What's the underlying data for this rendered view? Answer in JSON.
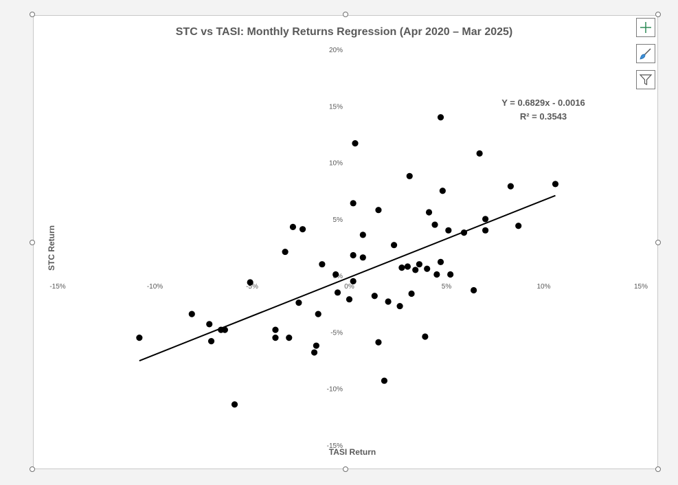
{
  "chart_data": {
    "type": "scatter",
    "title": "STC vs TASI: Monthly Returns Regression (Apr 2020 – Mar 2025)",
    "xlabel": "TASI Return",
    "ylabel": "STC Return",
    "xlim": [
      -0.15,
      0.15
    ],
    "ylim": [
      -0.15,
      0.2
    ],
    "x_ticks": [
      -0.15,
      -0.1,
      -0.05,
      0,
      0.05,
      0.1,
      0.15
    ],
    "x_tick_labels": [
      "-15%",
      "-10%",
      "-5%",
      "0%",
      "5%",
      "10%",
      "15%"
    ],
    "y_ticks": [
      0.2,
      0.15,
      0.1,
      0.05,
      0,
      -0.05,
      -0.1,
      -0.15
    ],
    "y_tick_labels": [
      "20%",
      "15%",
      "10%",
      "5%",
      "0%",
      "-5%",
      "-10%",
      "-15%"
    ],
    "grid": false,
    "legend": "none",
    "marker_color": "#000000",
    "trendline": {
      "type": "linear",
      "slope": 0.6829,
      "intercept": -0.0016,
      "x_range": [
        -0.108,
        0.106
      ],
      "color": "#000000",
      "equation_label": "Y = 0.6829x - 0.0016",
      "r2_label": "R² = 0.3543"
    },
    "points": [
      [
        0.047,
        0.14
      ],
      [
        0.003,
        0.117
      ],
      [
        0.067,
        0.108
      ],
      [
        0.031,
        0.088
      ],
      [
        0.048,
        0.075
      ],
      [
        0.106,
        0.081
      ],
      [
        0.083,
        0.079
      ],
      [
        0.002,
        0.064
      ],
      [
        0.015,
        0.058
      ],
      [
        0.041,
        0.056
      ],
      [
        0.07,
        0.05
      ],
      [
        0.044,
        0.045
      ],
      [
        0.087,
        0.044
      ],
      [
        -0.029,
        0.043
      ],
      [
        -0.024,
        0.041
      ],
      [
        0.051,
        0.04
      ],
      [
        0.07,
        0.04
      ],
      [
        0.059,
        0.038
      ],
      [
        0.007,
        0.036
      ],
      [
        0.023,
        0.027
      ],
      [
        -0.033,
        0.021
      ],
      [
        0.002,
        0.018
      ],
      [
        0.007,
        0.016
      ],
      [
        0.047,
        0.012
      ],
      [
        -0.014,
        0.01
      ],
      [
        0.036,
        0.01
      ],
      [
        0.03,
        0.008
      ],
      [
        0.027,
        0.007
      ],
      [
        0.04,
        0.006
      ],
      [
        0.034,
        0.005
      ],
      [
        0.045,
        0.001
      ],
      [
        0.052,
        0.001
      ],
      [
        -0.007,
        0.001
      ],
      [
        0.002,
        -0.005
      ],
      [
        -0.051,
        -0.006
      ],
      [
        0.064,
        -0.013
      ],
      [
        -0.006,
        -0.015
      ],
      [
        0.032,
        -0.016
      ],
      [
        0.013,
        -0.018
      ],
      [
        0.0,
        -0.021
      ],
      [
        -0.026,
        -0.024
      ],
      [
        0.02,
        -0.023
      ],
      [
        0.026,
        -0.027
      ],
      [
        -0.081,
        -0.034
      ],
      [
        -0.016,
        -0.034
      ],
      [
        -0.072,
        -0.043
      ],
      [
        -0.066,
        -0.048
      ],
      [
        -0.064,
        -0.048
      ],
      [
        -0.038,
        -0.048
      ],
      [
        -0.108,
        -0.055
      ],
      [
        -0.038,
        -0.055
      ],
      [
        -0.031,
        -0.055
      ],
      [
        0.039,
        -0.054
      ],
      [
        -0.071,
        -0.058
      ],
      [
        0.015,
        -0.059
      ],
      [
        -0.017,
        -0.062
      ],
      [
        -0.018,
        -0.068
      ],
      [
        0.018,
        -0.093
      ],
      [
        -0.059,
        -0.114
      ]
    ]
  }
}
